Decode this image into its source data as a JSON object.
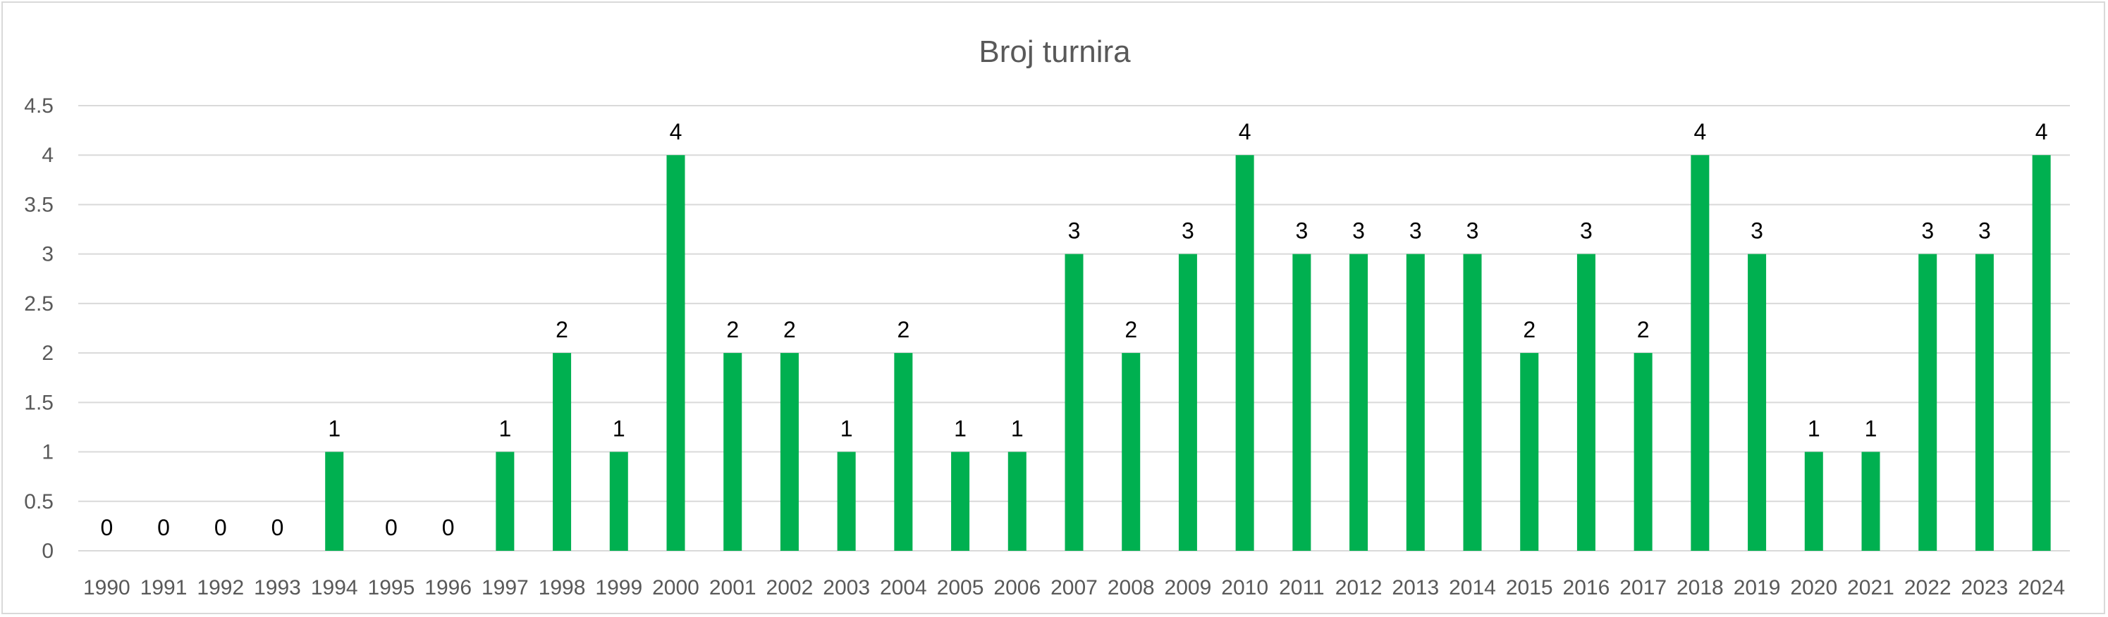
{
  "chart_data": {
    "type": "bar",
    "title": "Broj turnira",
    "xlabel": "",
    "ylabel": "",
    "ylim": [
      0,
      4.5
    ],
    "yticks": [
      "0",
      "0.5",
      "1",
      "1.5",
      "2",
      "2.5",
      "3",
      "3.5",
      "4",
      "4.5"
    ],
    "grid": true,
    "legend": "none",
    "bar_color": "#00b050",
    "categories": [
      "1990",
      "1991",
      "1992",
      "1993",
      "1994",
      "1995",
      "1996",
      "1997",
      "1998",
      "1999",
      "2000",
      "2001",
      "2002",
      "2003",
      "2004",
      "2005",
      "2006",
      "2007",
      "2008",
      "2009",
      "2010",
      "2011",
      "2012",
      "2013",
      "2014",
      "2015",
      "2016",
      "2017",
      "2018",
      "2019",
      "2020",
      "2021",
      "2022",
      "2023",
      "2024"
    ],
    "values": [
      0,
      0,
      0,
      0,
      1,
      0,
      0,
      1,
      2,
      1,
      4,
      2,
      2,
      1,
      2,
      1,
      1,
      3,
      2,
      3,
      4,
      3,
      3,
      3,
      3,
      2,
      3,
      2,
      4,
      3,
      1,
      1,
      3,
      3,
      4
    ]
  }
}
